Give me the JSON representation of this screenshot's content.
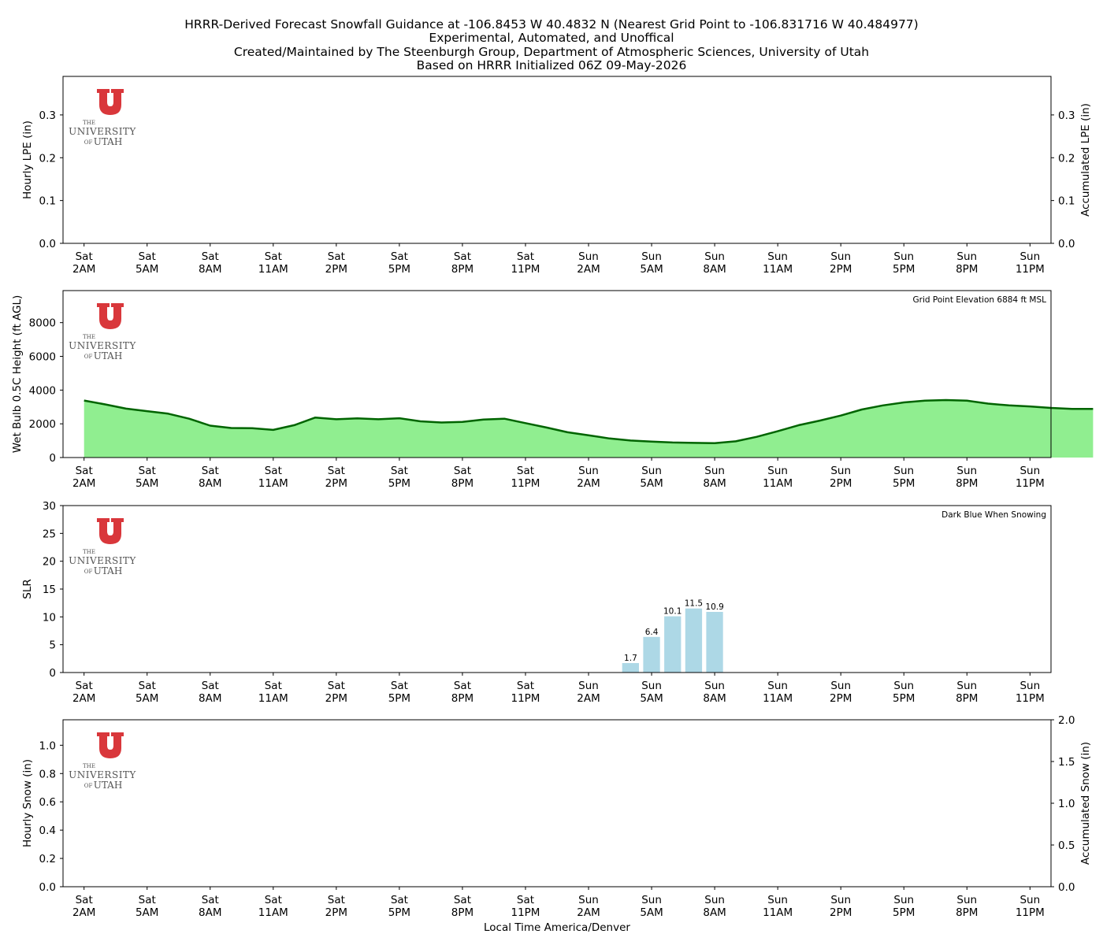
{
  "title_lines": [
    "HRRR-Derived Forecast Snowfall Guidance at -106.8453 W 40.4832 N (Nearest Grid Point to -106.831716 W 40.484977)",
    "Experimental, Automated, and Unoffical",
    "Created/Maintained by The Steenburgh Group, Department of Atmospheric Sciences, University of Utah",
    "Based on HRRR Initialized 06Z 09-May-2026"
  ],
  "x_axis_label": "Local Time America/Denver",
  "x_ticks": [
    {
      "day": "Sat",
      "time": "2AM"
    },
    {
      "day": "Sat",
      "time": "5AM"
    },
    {
      "day": "Sat",
      "time": "8AM"
    },
    {
      "day": "Sat",
      "time": "11AM"
    },
    {
      "day": "Sat",
      "time": "2PM"
    },
    {
      "day": "Sat",
      "time": "5PM"
    },
    {
      "day": "Sat",
      "time": "8PM"
    },
    {
      "day": "Sat",
      "time": "11PM"
    },
    {
      "day": "Sun",
      "time": "2AM"
    },
    {
      "day": "Sun",
      "time": "5AM"
    },
    {
      "day": "Sun",
      "time": "8AM"
    },
    {
      "day": "Sun",
      "time": "11AM"
    },
    {
      "day": "Sun",
      "time": "2PM"
    },
    {
      "day": "Sun",
      "time": "5PM"
    },
    {
      "day": "Sun",
      "time": "8PM"
    },
    {
      "day": "Sun",
      "time": "11PM"
    }
  ],
  "logo": {
    "the": "THE",
    "university": "UNIVERSITY",
    "of": "OF",
    "utah": "UTAH",
    "color": "#d9373b"
  },
  "colors": {
    "wetbulb_fill": "#90ee90",
    "wetbulb_line": "#006400",
    "slr_bar": "#add8e6",
    "axis": "#000000"
  },
  "chart_data": [
    {
      "id": "lpe",
      "type": "bar",
      "ylabel": "Hourly LPE (in)",
      "ylabel_right": "Accumulated LPE (in)",
      "ylim": [
        0,
        0.39
      ],
      "yticks": [
        0.0,
        0.1,
        0.2,
        0.3
      ],
      "yticks_right": [
        0.0,
        0.1,
        0.2,
        0.3
      ],
      "ylim_right": [
        0,
        0.39
      ],
      "x_hours": [],
      "values": [],
      "accumulated": []
    },
    {
      "id": "wetbulb",
      "type": "area",
      "ylabel": "Wet Bulb 0.5C Height (ft AGL)",
      "annotation": "Grid Point Elevation 6884 ft MSL",
      "ylim": [
        0,
        9900
      ],
      "yticks": [
        0,
        2000,
        4000,
        6000,
        8000
      ],
      "x_hours": [
        1,
        2,
        3,
        4,
        5,
        6,
        7,
        8,
        9,
        10,
        11,
        12,
        13,
        14,
        15,
        16,
        17,
        18,
        19,
        20,
        21,
        22,
        23,
        24,
        25,
        26,
        27,
        28,
        29,
        30,
        31,
        32,
        33,
        34,
        35,
        36,
        37,
        38,
        39,
        40,
        41,
        42,
        43,
        44,
        45,
        46,
        47,
        48,
        49
      ],
      "values": [
        3380,
        3150,
        2900,
        2750,
        2600,
        2300,
        1890,
        1750,
        1740,
        1640,
        1920,
        2370,
        2270,
        2320,
        2270,
        2330,
        2150,
        2080,
        2110,
        2250,
        2300,
        2040,
        1780,
        1500,
        1320,
        1130,
        1010,
        950,
        890,
        870,
        850,
        960,
        1230,
        1560,
        1920,
        2190,
        2490,
        2850,
        3090,
        3270,
        3370,
        3410,
        3370,
        3200,
        3090,
        3030,
        2940,
        2880,
        2880
      ]
    },
    {
      "id": "slr",
      "type": "bar",
      "ylabel": "SLR",
      "annotation": "Dark Blue When Snowing",
      "ylim": [
        0,
        30
      ],
      "yticks": [
        0,
        5,
        10,
        15,
        20,
        25,
        30
      ],
      "x_hours": [
        27,
        28,
        29,
        30,
        31
      ],
      "values": [
        1.7,
        6.4,
        10.1,
        11.5,
        10.9
      ],
      "labels": [
        "1.7",
        "6.4",
        "10.1",
        "11.5",
        "10.9"
      ]
    },
    {
      "id": "snow",
      "type": "bar",
      "ylabel": "Hourly Snow (in)",
      "ylabel_right": "Accumulated Snow (in)",
      "ylim": [
        0,
        1.18
      ],
      "yticks": [
        0.0,
        0.2,
        0.4,
        0.6,
        0.8,
        1.0
      ],
      "ylim_right": [
        0,
        2.0
      ],
      "yticks_right": [
        0.0,
        0.5,
        1.0,
        1.5,
        2.0
      ],
      "x_hours": [],
      "values": [],
      "accumulated": []
    }
  ]
}
